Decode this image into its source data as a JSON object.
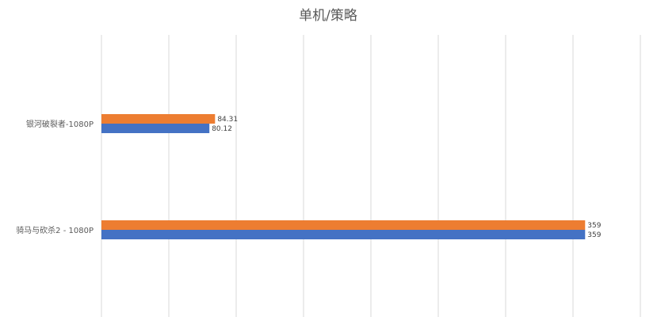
{
  "chart_data": {
    "type": "bar",
    "orientation": "horizontal",
    "title": "单机/策略",
    "xlabel": "",
    "ylabel": "",
    "xlim": [
      0,
      400
    ],
    "grid": true,
    "legend": "none",
    "categories": [
      "银河破裂者-1080P",
      "骑马与砍杀2 - 1080P"
    ],
    "series": [
      {
        "values": [
          84.31,
          359
        ],
        "labels": [
          "84.31",
          "359"
        ],
        "color": "#ED7D31"
      },
      {
        "values": [
          80.12,
          359
        ],
        "labels": [
          "80.12",
          "359"
        ],
        "color": "#4472C4"
      }
    ]
  }
}
